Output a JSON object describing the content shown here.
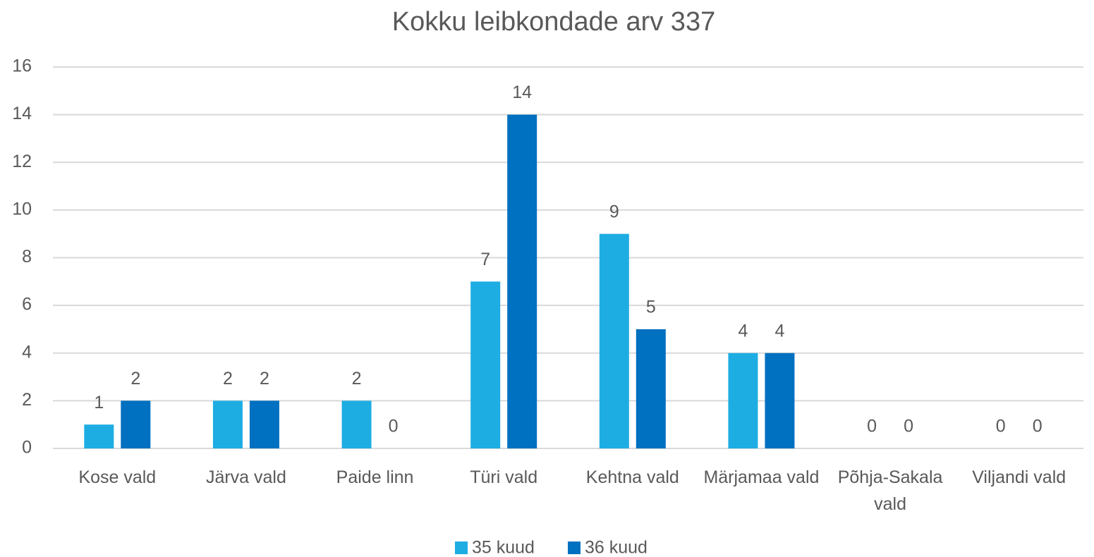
{
  "chart_data": {
    "type": "bar",
    "title": "Kokku leibkondade arv 337",
    "categories": [
      "Kose vald",
      "Järva vald",
      "Paide linn",
      "Türi vald",
      "Kehtna vald",
      "Märjamaa vald",
      "Põhja-Sakala vald",
      "Viljandi vald"
    ],
    "series": [
      {
        "name": "35 kuud",
        "color": "#1eade3",
        "values": [
          1,
          2,
          2,
          7,
          9,
          4,
          0,
          0
        ]
      },
      {
        "name": "36 kuud",
        "color": "#0070c0",
        "values": [
          2,
          2,
          0,
          14,
          5,
          4,
          0,
          0
        ]
      }
    ],
    "ylim": [
      0,
      16
    ],
    "yticks": [
      0,
      2,
      4,
      6,
      8,
      10,
      12,
      14,
      16
    ],
    "grid": true,
    "legend": "bottom"
  }
}
